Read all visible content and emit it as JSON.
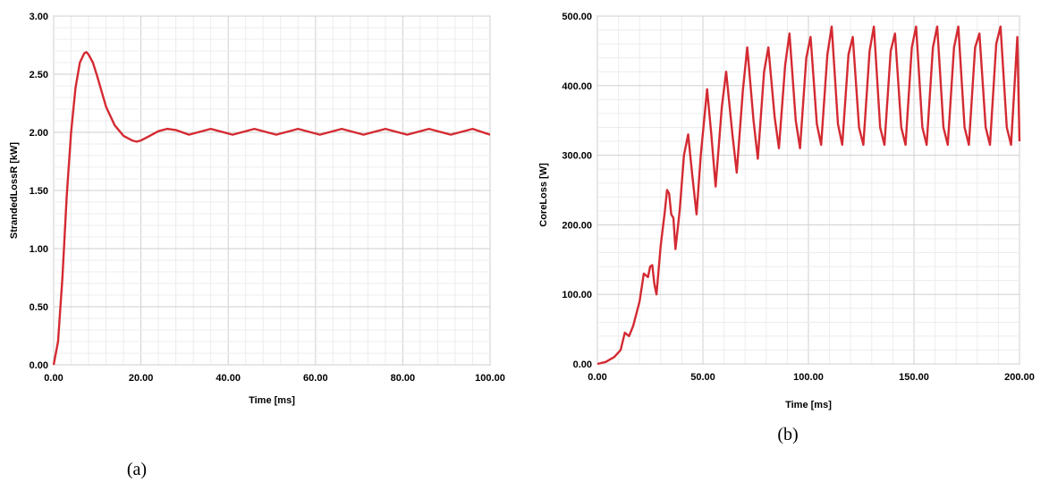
{
  "chart_data": [
    {
      "type": "line",
      "caption": "(a)",
      "xlabel": "Time [ms]",
      "ylabel": "StrandedLossR [kW]",
      "xlim": [
        0,
        100
      ],
      "ylim": [
        0,
        3
      ],
      "xticks": [
        "0.00",
        "20.00",
        "40.00",
        "60.00",
        "80.00",
        "100.00"
      ],
      "yticks": [
        "0.00",
        "0.50",
        "1.00",
        "1.50",
        "2.00",
        "2.50",
        "3.00"
      ],
      "grid": true,
      "line_color": "#d42a32",
      "series": [
        {
          "x": [
            0,
            1,
            2,
            3,
            4,
            5,
            6,
            7,
            7.5,
            8,
            9,
            10,
            12,
            14,
            16,
            18,
            19,
            20,
            22,
            24,
            26,
            28,
            31,
            36,
            41,
            46,
            51,
            56,
            61,
            66,
            71,
            76,
            81,
            86,
            91,
            96,
            100
          ],
          "y": [
            0.0,
            0.2,
            0.75,
            1.45,
            2.0,
            2.38,
            2.6,
            2.68,
            2.69,
            2.67,
            2.6,
            2.48,
            2.22,
            2.06,
            1.97,
            1.93,
            1.92,
            1.93,
            1.97,
            2.01,
            2.03,
            2.02,
            1.98,
            2.03,
            1.98,
            2.03,
            1.98,
            2.03,
            1.98,
            2.03,
            1.98,
            2.03,
            1.98,
            2.03,
            1.98,
            2.03,
            1.98
          ]
        }
      ]
    },
    {
      "type": "line",
      "caption": "(b)",
      "xlabel": "Time [ms]",
      "ylabel": "CoreLoss [W]",
      "xlim": [
        0,
        200
      ],
      "ylim": [
        0,
        500
      ],
      "xticks": [
        "0.00",
        "50.00",
        "100.00",
        "150.00",
        "200.00"
      ],
      "yticks": [
        "0.00",
        "100.00",
        "200.00",
        "300.00",
        "400.00",
        "500.00"
      ],
      "grid": true,
      "line_color": "#d42a32",
      "series": [
        {
          "x": [
            0,
            4,
            8,
            11,
            13,
            15,
            17,
            20,
            22,
            24,
            25,
            26,
            27,
            28,
            30,
            32,
            33,
            34,
            35,
            36,
            37,
            39,
            41,
            43,
            45,
            47,
            49,
            52,
            54,
            56,
            59,
            61,
            64,
            66,
            69,
            71,
            74,
            76,
            79,
            81,
            84,
            86,
            89,
            91,
            94,
            96,
            99,
            101,
            104,
            106,
            109,
            111,
            114,
            116,
            119,
            121,
            124,
            126,
            129,
            131,
            134,
            136,
            139,
            141,
            144,
            146,
            149,
            151,
            154,
            156,
            159,
            161,
            164,
            166,
            169,
            171,
            174,
            176,
            179,
            181,
            184,
            186,
            189,
            191,
            194,
            196,
            199,
            200
          ],
          "y": [
            0,
            3,
            10,
            20,
            45,
            40,
            55,
            90,
            130,
            125,
            140,
            142,
            115,
            100,
            170,
            220,
            250,
            245,
            215,
            210,
            165,
            220,
            300,
            330,
            270,
            215,
            300,
            395,
            330,
            255,
            370,
            420,
            330,
            275,
            395,
            455,
            350,
            295,
            420,
            455,
            355,
            310,
            430,
            475,
            350,
            310,
            440,
            470,
            345,
            315,
            445,
            485,
            345,
            315,
            445,
            470,
            340,
            315,
            450,
            485,
            340,
            315,
            450,
            475,
            340,
            315,
            455,
            485,
            340,
            315,
            455,
            485,
            340,
            315,
            455,
            485,
            340,
            315,
            455,
            475,
            340,
            315,
            460,
            485,
            340,
            315,
            470,
            320
          ]
        }
      ]
    }
  ]
}
